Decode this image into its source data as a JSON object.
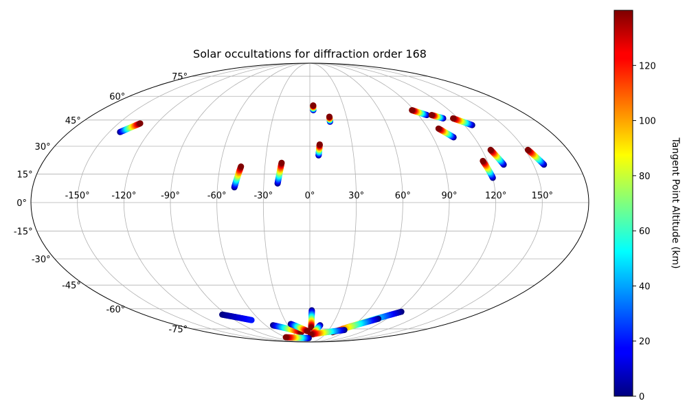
{
  "chart_data": {
    "type": "scatter",
    "projection": "mollweide",
    "title": "Solar occultations for diffraction order 168",
    "grid": true,
    "x_ticks": [
      -150,
      -120,
      -90,
      -60,
      -30,
      0,
      30,
      60,
      90,
      120,
      150
    ],
    "x_tick_labels": [
      "-150°",
      "-120°",
      "-90°",
      "-60°",
      "-30°",
      "0°",
      "30°",
      "60°",
      "90°",
      "120°",
      "150°"
    ],
    "y_ticks": [
      -75,
      -60,
      -45,
      -30,
      -15,
      0,
      15,
      30,
      45,
      60,
      75
    ],
    "y_tick_labels": [
      "-75°",
      "-60°",
      "-45°",
      "-30°",
      "-15°",
      "0°",
      "15°",
      "30°",
      "45°",
      "60°",
      "75°"
    ],
    "colorbar": {
      "label": "Tangent Point Altitude (km)",
      "range": [
        0,
        140
      ],
      "ticks": [
        0,
        20,
        40,
        60,
        80,
        100,
        120
      ],
      "tick_labels": [
        "0",
        "20",
        "40",
        "60",
        "80",
        "100",
        "120"
      ],
      "colormap": "jet"
    },
    "tracks": [
      {
        "lon": [
          -142,
          -133
        ],
        "lat": [
          38,
          43
        ],
        "alt": [
          0,
          140
        ]
      },
      {
        "lon": [
          -49,
          -46
        ],
        "lat": [
          8,
          19
        ],
        "alt": [
          0,
          140
        ]
      },
      {
        "lon": [
          -21,
          -19
        ],
        "lat": [
          10,
          21
        ],
        "alt": [
          0,
          140
        ]
      },
      {
        "lon": [
          3,
          3
        ],
        "lat": [
          51,
          54
        ],
        "alt": [
          0,
          140
        ]
      },
      {
        "lon": [
          6,
          7
        ],
        "lat": [
          25,
          31
        ],
        "alt": [
          0,
          140
        ]
      },
      {
        "lon": [
          16,
          16
        ],
        "lat": [
          44,
          47
        ],
        "alt": [
          0,
          140
        ]
      },
      {
        "lon": [
          97,
          88
        ],
        "lat": [
          48,
          51
        ],
        "alt": [
          0,
          140
        ]
      },
      {
        "lon": [
          108,
          101
        ],
        "lat": [
          46,
          48
        ],
        "alt": [
          0,
          140
        ]
      },
      {
        "lon": [
          105,
          98
        ],
        "lat": [
          35,
          40
        ],
        "alt": [
          0,
          140
        ]
      },
      {
        "lon": [
          126,
          116
        ],
        "lat": [
          42,
          46
        ],
        "alt": [
          0,
          140
        ]
      },
      {
        "lon": [
          120,
          117
        ],
        "lat": [
          13,
          22
        ],
        "alt": [
          0,
          140
        ]
      },
      {
        "lon": [
          130,
          126
        ],
        "lat": [
          20,
          28
        ],
        "alt": [
          0,
          140
        ]
      },
      {
        "lon": [
          157,
          152
        ],
        "lat": [
          20,
          28
        ],
        "alt": [
          0,
          140
        ]
      },
      {
        "lon": [
          2,
          2
        ],
        "lat": [
          -61,
          -74
        ],
        "alt": [
          0,
          140
        ]
      },
      {
        "lon": [
          14,
          6
        ],
        "lat": [
          -72,
          -80
        ],
        "alt": [
          0,
          140
        ]
      },
      {
        "lon": [
          95,
          50
        ],
        "lat": [
          -62,
          -75
        ],
        "alt": [
          0,
          120
        ]
      },
      {
        "lon": [
          80,
          40
        ],
        "lat": [
          -67,
          -78
        ],
        "alt": [
          0,
          140
        ]
      },
      {
        "lon": [
          -95,
          -70
        ],
        "lat": [
          -64,
          -68
        ],
        "alt": [
          0,
          20
        ]
      },
      {
        "lon": [
          -50,
          -15
        ],
        "lat": [
          -72,
          -78
        ],
        "alt": [
          0,
          140
        ]
      },
      {
        "lon": [
          -25,
          -4
        ],
        "lat": [
          -71,
          -77
        ],
        "alt": [
          0,
          140
        ]
      },
      {
        "lon": [
          55,
          2
        ],
        "lat": [
          -76,
          -80
        ],
        "alt": [
          0,
          140
        ]
      },
      {
        "lon": [
          -3,
          -60
        ],
        "lat": [
          -84,
          -83
        ],
        "alt": [
          0,
          140
        ]
      }
    ]
  }
}
